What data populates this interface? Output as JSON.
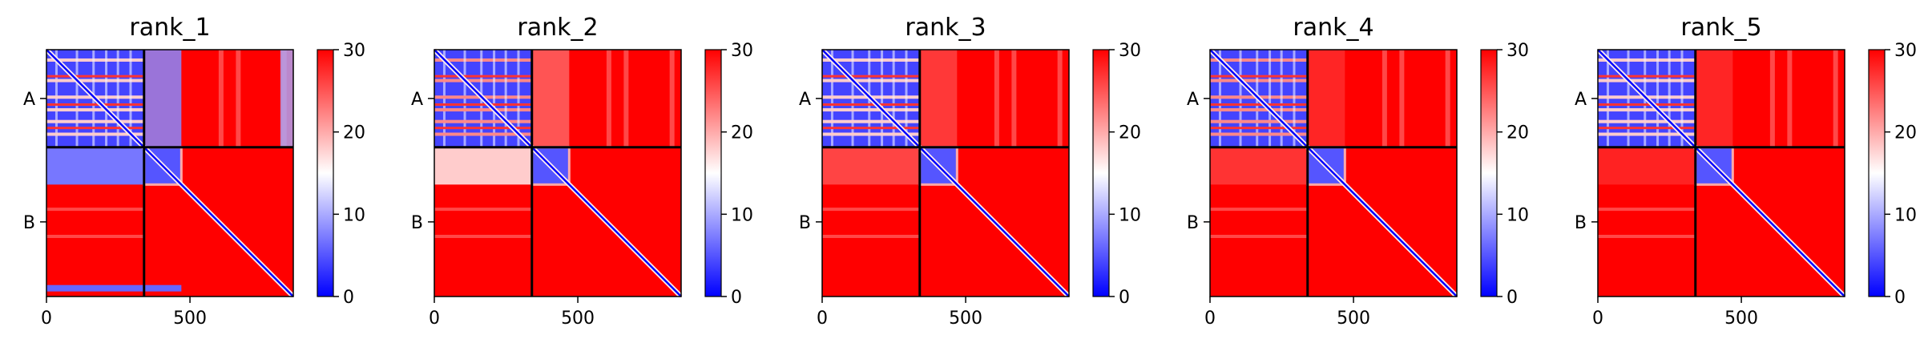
{
  "figure": {
    "type": "heatmap-panels",
    "colormap": {
      "name": "bwr",
      "low": "#0000ff",
      "mid": "#ffffff",
      "high": "#ff0000"
    },
    "chain_boundary_color": "#000000"
  },
  "chart_data": [
    {
      "type": "heatmap",
      "title": "rank_1",
      "chains": [
        "A",
        "B"
      ],
      "chain_boundary": 340,
      "length": 860,
      "xticks": [
        "0",
        "500"
      ],
      "xtick_values": [
        0,
        500
      ],
      "xlim": [
        0,
        860
      ],
      "colorbar": {
        "min": 0,
        "max": 30,
        "ticks": [
          "0",
          "10",
          "20",
          "30"
        ]
      },
      "inter_chain_AB_block": "partially low (blue/white band ~0-250)"
    },
    {
      "type": "heatmap",
      "title": "rank_2",
      "chains": [
        "A",
        "B"
      ],
      "chain_boundary": 340,
      "length": 860,
      "xticks": [
        "0",
        "500"
      ],
      "xtick_values": [
        0,
        500
      ],
      "xlim": [
        0,
        860
      ],
      "colorbar": {
        "min": 0,
        "max": 30,
        "ticks": [
          "0",
          "10",
          "20",
          "30"
        ]
      },
      "inter_chain_AB_block": "mostly high with white band"
    },
    {
      "type": "heatmap",
      "title": "rank_3",
      "chains": [
        "A",
        "B"
      ],
      "chain_boundary": 340,
      "length": 860,
      "xticks": [
        "0",
        "500"
      ],
      "xtick_values": [
        0,
        500
      ],
      "xlim": [
        0,
        860
      ],
      "colorbar": {
        "min": 0,
        "max": 30,
        "ticks": [
          "0",
          "10",
          "20",
          "30"
        ]
      },
      "inter_chain_AB_block": "high"
    },
    {
      "type": "heatmap",
      "title": "rank_4",
      "chains": [
        "A",
        "B"
      ],
      "chain_boundary": 340,
      "length": 860,
      "xticks": [
        "0",
        "500"
      ],
      "xtick_values": [
        0,
        500
      ],
      "xlim": [
        0,
        860
      ],
      "colorbar": {
        "min": 0,
        "max": 30,
        "ticks": [
          "0",
          "10",
          "20",
          "30"
        ]
      },
      "inter_chain_AB_block": "high"
    },
    {
      "type": "heatmap",
      "title": "rank_5",
      "chains": [
        "A",
        "B"
      ],
      "chain_boundary": 340,
      "length": 860,
      "xticks": [
        "0",
        "500"
      ],
      "xtick_values": [
        0,
        500
      ],
      "xlim": [
        0,
        860
      ],
      "colorbar": {
        "min": 0,
        "max": 30,
        "ticks": [
          "0",
          "10",
          "20",
          "30"
        ]
      },
      "inter_chain_AB_block": "high"
    }
  ]
}
